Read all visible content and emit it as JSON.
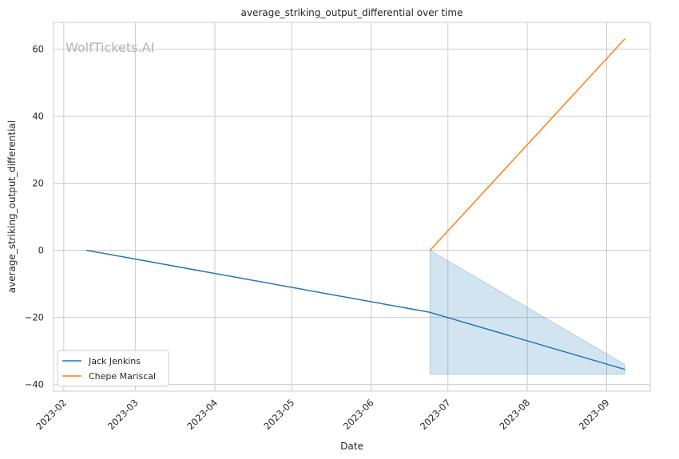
{
  "chart_data": {
    "type": "line",
    "title": "average_striking_output_differential over time",
    "xlabel": "Date",
    "ylabel": "average_striking_output_differential",
    "watermark": "WolfTickets.AI",
    "x_tick_labels": [
      "2023-02",
      "2023-03",
      "2023-04",
      "2023-05",
      "2023-06",
      "2023-07",
      "2023-08",
      "2023-09"
    ],
    "x_tick_dates": [
      "2023-02-01",
      "2023-03-01",
      "2023-04-01",
      "2023-05-01",
      "2023-06-01",
      "2023-07-01",
      "2023-08-01",
      "2023-09-01"
    ],
    "y_tick_labels": [
      "60",
      "40",
      "20",
      "0",
      "−20",
      "−40"
    ],
    "y_tick_values": [
      60,
      40,
      20,
      0,
      -20,
      -40
    ],
    "xlim": [
      "2023-01-28",
      "2023-09-18"
    ],
    "ylim": [
      -42,
      68
    ],
    "grid": true,
    "legend_position": "lower-left",
    "series": [
      {
        "name": "Jack Jenkins",
        "color": "#1f77b4",
        "x": [
          "2023-02-10",
          "2023-06-24",
          "2023-09-08"
        ],
        "values": [
          0,
          -18.5,
          -35.5
        ],
        "ci": [
          {
            "x": "2023-06-24",
            "upper": 0,
            "lower": -37
          },
          {
            "x": "2023-09-08",
            "upper": -34,
            "lower": -37
          }
        ]
      },
      {
        "name": "Chepe Mariscal",
        "color": "#ff7f0e",
        "x": [
          "2023-06-24",
          "2023-09-08"
        ],
        "values": [
          0,
          63
        ]
      }
    ]
  }
}
